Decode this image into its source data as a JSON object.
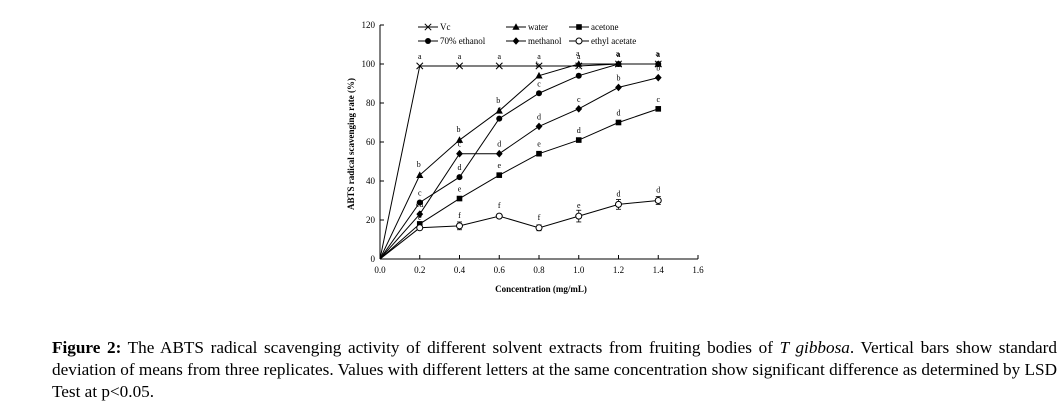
{
  "chart_data": {
    "type": "line",
    "xlabel": "Concentration (mg/mL)",
    "ylabel": "ABTS radical scavenging rate (%)",
    "xlim": [
      0.0,
      1.6
    ],
    "ylim": [
      0,
      120
    ],
    "xticks": [
      "0.0",
      "0.2",
      "0.4",
      "0.6",
      "0.8",
      "1.0",
      "1.2",
      "1.4",
      "1.6"
    ],
    "yticks": [
      "0",
      "20",
      "40",
      "60",
      "80",
      "100",
      "120"
    ],
    "grid": false,
    "legend_position": "top-right",
    "series": [
      {
        "name": "Vc",
        "marker": "x",
        "x": [
          0,
          0.2,
          0.4,
          0.6,
          0.8,
          1.0,
          1.2,
          1.4
        ],
        "y": [
          0,
          99,
          99,
          99,
          99,
          99,
          100,
          100
        ],
        "labels": [
          "",
          "a",
          "a",
          "a",
          "a",
          "a",
          "a",
          "a"
        ]
      },
      {
        "name": "water",
        "marker": "triangle",
        "x": [
          0,
          0.2,
          0.4,
          0.6,
          0.8,
          1.0,
          1.2,
          1.4
        ],
        "y": [
          0,
          43,
          61,
          76,
          94,
          100,
          100,
          100
        ],
        "labels": [
          "",
          "b",
          "b",
          "b",
          "b",
          "a",
          "a",
          "a"
        ]
      },
      {
        "name": "acetone",
        "marker": "square",
        "x": [
          0,
          0.2,
          0.4,
          0.6,
          0.8,
          1.0,
          1.2,
          1.4
        ],
        "y": [
          0,
          18,
          31,
          43,
          54,
          61,
          70,
          77
        ],
        "labels": [
          "",
          "d",
          "e",
          "e",
          "e",
          "d",
          "d",
          "c"
        ]
      },
      {
        "name": "70% ethanol",
        "marker": "circle",
        "x": [
          0,
          0.2,
          0.4,
          0.6,
          0.8,
          1.0,
          1.2,
          1.4
        ],
        "y": [
          0,
          29,
          42,
          72,
          85,
          94,
          100,
          100
        ],
        "labels": [
          "",
          "c",
          "d",
          "c",
          "c",
          "b",
          "a",
          "a"
        ]
      },
      {
        "name": "methanol",
        "marker": "diamond",
        "x": [
          0,
          0.2,
          0.4,
          0.6,
          0.8,
          1.0,
          1.2,
          1.4
        ],
        "y": [
          0,
          23,
          54,
          54,
          68,
          77,
          88,
          93
        ],
        "labels": [
          "",
          "cd",
          "c",
          "d",
          "d",
          "c",
          "b",
          "b"
        ]
      },
      {
        "name": "ethyl acetate",
        "marker": "open-circle",
        "x": [
          0,
          0.2,
          0.4,
          0.6,
          0.8,
          1.0,
          1.2,
          1.4
        ],
        "y": [
          0,
          16,
          17,
          22,
          16,
          22,
          28,
          30
        ],
        "err": [
          0,
          0,
          2,
          1,
          1.5,
          3,
          2.5,
          2
        ],
        "labels": [
          "",
          "e",
          "f",
          "f",
          "f",
          "e",
          "d",
          "d"
        ]
      }
    ],
    "colors": {
      "line": "#000000"
    }
  },
  "caption": {
    "label": "Figure 2:",
    "text": " The ABTS radical scavenging activity of different solvent extracts from fruiting bodies of ",
    "species": "T gibbosa",
    "text2": ". Vertical bars show standard deviation of means from three replicates. Values with different letters at the same concentration show significant difference as determined by LSD Test at p<0.05."
  }
}
